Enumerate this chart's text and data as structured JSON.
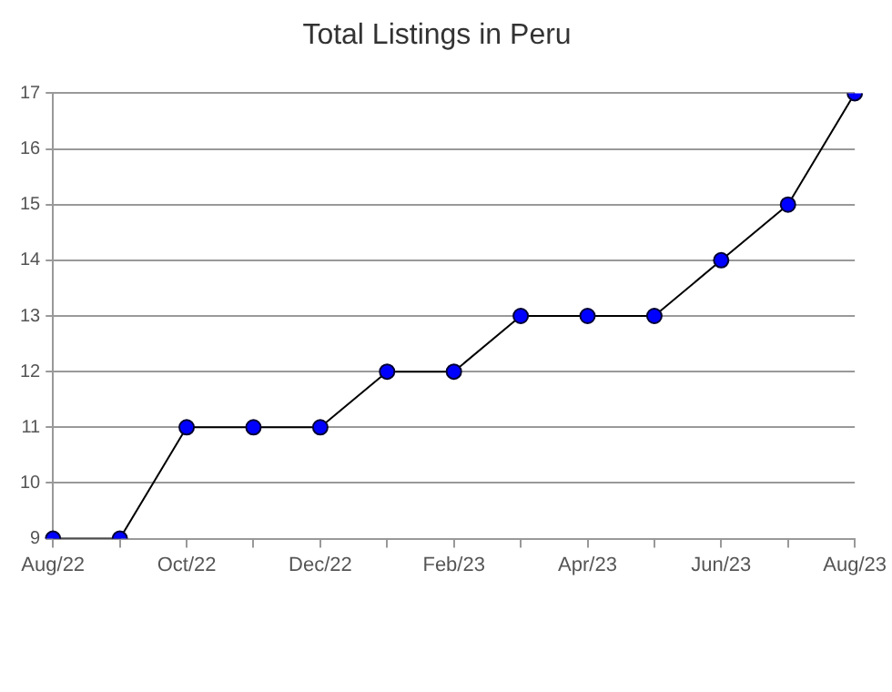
{
  "chart_data": {
    "type": "line",
    "title": "Total Listings in Peru",
    "categories": [
      "Aug/22",
      null,
      "Oct/22",
      null,
      "Dec/22",
      null,
      "Feb/23",
      null,
      "Apr/23",
      null,
      "Jun/23",
      null,
      "Aug/23"
    ],
    "series": [
      {
        "color": "#0000ff",
        "values": [
          9,
          9,
          11,
          11,
          11,
          12,
          12,
          13,
          13,
          13,
          14,
          15,
          17
        ]
      }
    ],
    "ylim": [
      9,
      17
    ],
    "yticks": [
      9,
      10,
      11,
      12,
      13,
      14,
      15,
      16,
      17
    ],
    "grid": "y",
    "marker": "circle",
    "line_style": "solid",
    "legend": false
  }
}
